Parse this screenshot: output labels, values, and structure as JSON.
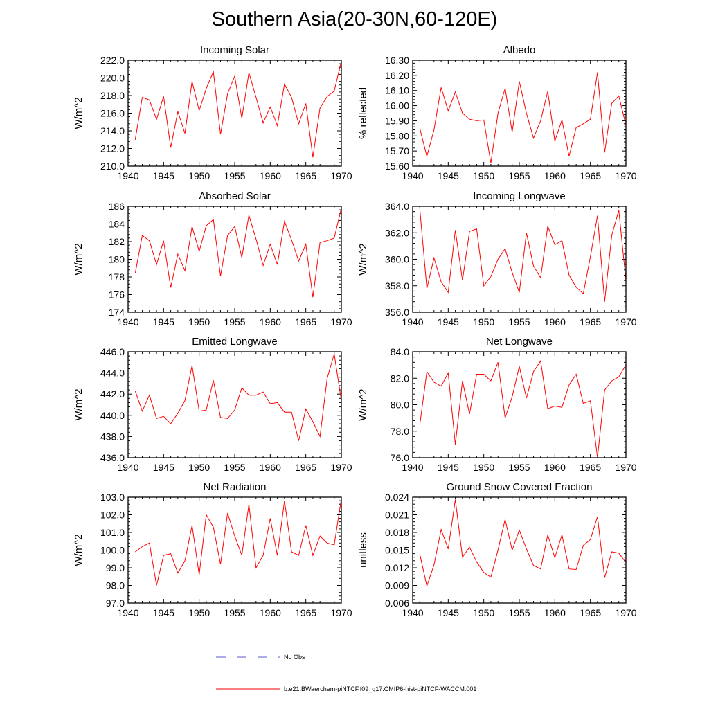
{
  "title": "Southern Asia(20-30N,60-120E)",
  "legend": {
    "entries": [
      {
        "label": "No Obs",
        "color": "#5a5acc",
        "style": "dashed"
      },
      {
        "label": "b.e21.BWaerchem-piNTCF.f09_g17.CMIP6-hist-piNTCF-WACCM.001",
        "color": "#ff0000",
        "style": "solid"
      }
    ]
  },
  "chart_data": [
    {
      "type": "line",
      "title": "Incoming Solar",
      "xlabel": "",
      "ylabel": "W/m^2",
      "xlim": [
        1940,
        1970
      ],
      "ylim": [
        210.0,
        222.0
      ],
      "xticks": [
        1940,
        1945,
        1950,
        1955,
        1960,
        1965,
        1970
      ],
      "xtick_labels": [
        "1940",
        "1945",
        "1950",
        "1955",
        "1960",
        "1965",
        "1970"
      ],
      "yticks": [
        210,
        212,
        214,
        216,
        218,
        220,
        222
      ],
      "ytick_labels": [
        "210.0",
        "212.0",
        "214.0",
        "216.0",
        "218.0",
        "220.0",
        "222.0"
      ],
      "series": [
        {
          "color": "#ff0000",
          "x": [
            1941,
            1942,
            1943,
            1944,
            1945,
            1946,
            1947,
            1948,
            1949,
            1950,
            1951,
            1952,
            1953,
            1954,
            1955,
            1956,
            1957,
            1958,
            1959,
            1960,
            1961,
            1962,
            1963,
            1964,
            1965,
            1966,
            1967,
            1968,
            1969,
            1970
          ],
          "values": [
            213.0,
            217.8,
            217.5,
            215.3,
            217.9,
            212.1,
            216.2,
            213.7,
            219.6,
            216.3,
            218.8,
            220.7,
            213.6,
            218.2,
            220.2,
            215.4,
            220.6,
            217.8,
            214.9,
            216.7,
            214.6,
            219.3,
            217.8,
            214.8,
            217.1,
            211.0,
            216.6,
            217.9,
            218.5,
            221.9
          ]
        }
      ]
    },
    {
      "type": "line",
      "title": "Albedo",
      "xlabel": "",
      "ylabel": "% reflected",
      "xlim": [
        1940,
        1970
      ],
      "ylim": [
        15.6,
        16.3
      ],
      "xticks": [
        1940,
        1945,
        1950,
        1955,
        1960,
        1965,
        1970
      ],
      "xtick_labels": [
        "1940",
        "1945",
        "1950",
        "1955",
        "1960",
        "1965",
        "1970"
      ],
      "yticks": [
        15.6,
        15.7,
        15.8,
        15.9,
        16.0,
        16.1,
        16.2,
        16.3
      ],
      "ytick_labels": [
        "15.60",
        "15.70",
        "15.80",
        "15.90",
        "16.00",
        "16.10",
        "16.20",
        "16.30"
      ],
      "series": [
        {
          "color": "#ff0000",
          "x": [
            1941,
            1942,
            1943,
            1944,
            1945,
            1946,
            1947,
            1948,
            1949,
            1950,
            1951,
            1952,
            1953,
            1954,
            1955,
            1956,
            1957,
            1958,
            1959,
            1960,
            1961,
            1962,
            1963,
            1964,
            1965,
            1966,
            1967,
            1968,
            1969,
            1970
          ],
          "values": [
            15.85,
            15.665,
            15.84,
            16.12,
            15.965,
            16.09,
            15.95,
            15.91,
            15.9,
            15.905,
            15.62,
            15.95,
            16.115,
            15.825,
            16.16,
            15.95,
            15.785,
            15.9,
            16.095,
            15.765,
            15.905,
            15.665,
            15.855,
            15.88,
            15.91,
            16.22,
            15.69,
            16.015,
            16.065,
            15.87
          ]
        }
      ]
    },
    {
      "type": "line",
      "title": "Absorbed Solar",
      "xlabel": "",
      "ylabel": "W/m^2",
      "xlim": [
        1940,
        1970
      ],
      "ylim": [
        174,
        186
      ],
      "xticks": [
        1940,
        1945,
        1950,
        1955,
        1960,
        1965,
        1970
      ],
      "xtick_labels": [
        "1940",
        "1945",
        "1950",
        "1955",
        "1960",
        "1965",
        "1970"
      ],
      "yticks": [
        174,
        176,
        178,
        180,
        182,
        184,
        186
      ],
      "ytick_labels": [
        "174",
        "176",
        "178",
        "180",
        "182",
        "184",
        "186"
      ],
      "series": [
        {
          "color": "#ff0000",
          "x": [
            1941,
            1942,
            1943,
            1944,
            1945,
            1946,
            1947,
            1948,
            1949,
            1950,
            1951,
            1952,
            1953,
            1954,
            1955,
            1956,
            1957,
            1958,
            1959,
            1960,
            1961,
            1962,
            1963,
            1964,
            1965,
            1966,
            1967,
            1968,
            1969,
            1970
          ],
          "values": [
            178.4,
            182.7,
            182.1,
            179.4,
            182.1,
            176.8,
            180.6,
            178.7,
            183.7,
            180.9,
            183.8,
            184.5,
            178.1,
            182.7,
            183.7,
            180.2,
            185.0,
            182.3,
            179.3,
            181.7,
            179.4,
            184.3,
            182.2,
            179.8,
            181.7,
            175.7,
            181.9,
            182.1,
            182.4,
            185.8
          ]
        }
      ]
    },
    {
      "type": "line",
      "title": "Incoming Longwave",
      "xlabel": "",
      "ylabel": "W/m^2",
      "xlim": [
        1940,
        1970
      ],
      "ylim": [
        356.0,
        364.0
      ],
      "xticks": [
        1940,
        1945,
        1950,
        1955,
        1960,
        1965,
        1970
      ],
      "xtick_labels": [
        "1940",
        "1945",
        "1950",
        "1955",
        "1960",
        "1965",
        "1970"
      ],
      "yticks": [
        356,
        358,
        360,
        362,
        364
      ],
      "ytick_labels": [
        "356.0",
        "358.0",
        "360.0",
        "362.0",
        "364.0"
      ],
      "series": [
        {
          "color": "#ff0000",
          "x": [
            1941,
            1942,
            1943,
            1944,
            1945,
            1946,
            1947,
            1948,
            1949,
            1950,
            1951,
            1952,
            1953,
            1954,
            1955,
            1956,
            1957,
            1958,
            1959,
            1960,
            1961,
            1962,
            1963,
            1964,
            1965,
            1966,
            1967,
            1968,
            1969,
            1970
          ],
          "values": [
            363.8,
            357.8,
            360.1,
            358.3,
            357.5,
            362.2,
            358.4,
            362.1,
            362.3,
            358.0,
            358.7,
            360.0,
            360.8,
            359.0,
            357.5,
            362.0,
            359.5,
            358.6,
            362.5,
            361.1,
            361.4,
            358.8,
            357.9,
            357.4,
            360.2,
            363.3,
            356.8,
            361.8,
            363.7,
            358.4
          ]
        }
      ]
    },
    {
      "type": "line",
      "title": "Emitted Longwave",
      "xlabel": "",
      "ylabel": "W/m^2",
      "xlim": [
        1940,
        1970
      ],
      "ylim": [
        436.0,
        446.0
      ],
      "xticks": [
        1940,
        1945,
        1950,
        1955,
        1960,
        1965,
        1970
      ],
      "xtick_labels": [
        "1940",
        "1945",
        "1950",
        "1955",
        "1960",
        "1965",
        "1970"
      ],
      "yticks": [
        436,
        438,
        440,
        442,
        444,
        446
      ],
      "ytick_labels": [
        "436.0",
        "438.0",
        "440.0",
        "442.0",
        "444.0",
        "446.0"
      ],
      "series": [
        {
          "color": "#ff0000",
          "x": [
            1941,
            1942,
            1943,
            1944,
            1945,
            1946,
            1947,
            1948,
            1949,
            1950,
            1951,
            1952,
            1953,
            1954,
            1955,
            1956,
            1957,
            1958,
            1959,
            1960,
            1961,
            1962,
            1963,
            1964,
            1965,
            1966,
            1967,
            1968,
            1969,
            1970
          ],
          "values": [
            442.3,
            440.4,
            441.9,
            439.7,
            439.9,
            439.2,
            440.2,
            441.4,
            444.7,
            440.4,
            440.5,
            443.3,
            439.8,
            439.7,
            440.5,
            442.6,
            441.9,
            441.9,
            442.2,
            441.1,
            441.2,
            440.3,
            440.3,
            437.6,
            440.6,
            439.4,
            438.0,
            443.5,
            445.8,
            441.4
          ]
        }
      ]
    },
    {
      "type": "line",
      "title": "Net Longwave",
      "xlabel": "",
      "ylabel": "W/m^2",
      "xlim": [
        1940,
        1970
      ],
      "ylim": [
        76.0,
        84.0
      ],
      "xticks": [
        1940,
        1945,
        1950,
        1955,
        1960,
        1965,
        1970
      ],
      "xtick_labels": [
        "1940",
        "1945",
        "1950",
        "1955",
        "1960",
        "1965",
        "1970"
      ],
      "yticks": [
        76,
        78,
        80,
        82,
        84
      ],
      "ytick_labels": [
        "76.0",
        "78.0",
        "80.0",
        "82.0",
        "84.0"
      ],
      "series": [
        {
          "color": "#ff0000",
          "x": [
            1941,
            1942,
            1943,
            1944,
            1945,
            1946,
            1947,
            1948,
            1949,
            1950,
            1951,
            1952,
            1953,
            1954,
            1955,
            1956,
            1957,
            1958,
            1959,
            1960,
            1961,
            1962,
            1963,
            1964,
            1965,
            1966,
            1967,
            1968,
            1969,
            1970
          ],
          "values": [
            78.5,
            82.5,
            81.7,
            81.4,
            82.4,
            77.0,
            81.8,
            79.3,
            82.3,
            82.3,
            81.8,
            83.2,
            79.0,
            80.6,
            82.9,
            80.5,
            82.5,
            83.3,
            79.7,
            79.9,
            79.8,
            81.5,
            82.3,
            80.1,
            80.3,
            76.0,
            81.1,
            81.8,
            82.1,
            83.0
          ]
        }
      ]
    },
    {
      "type": "line",
      "title": "Net Radiation",
      "xlabel": "",
      "ylabel": "W/m^2",
      "xlim": [
        1940,
        1970
      ],
      "ylim": [
        97.0,
        103.0
      ],
      "xticks": [
        1940,
        1945,
        1950,
        1955,
        1960,
        1965,
        1970
      ],
      "xtick_labels": [
        "1940",
        "1945",
        "1950",
        "1955",
        "1960",
        "1965",
        "1970"
      ],
      "yticks": [
        97,
        98,
        99,
        100,
        101,
        102,
        103
      ],
      "ytick_labels": [
        "97.0",
        "98.0",
        "99.0",
        "100.0",
        "101.0",
        "102.0",
        "103.0"
      ],
      "series": [
        {
          "color": "#ff0000",
          "x": [
            1941,
            1942,
            1943,
            1944,
            1945,
            1946,
            1947,
            1948,
            1949,
            1950,
            1951,
            1952,
            1953,
            1954,
            1955,
            1956,
            1957,
            1958,
            1959,
            1960,
            1961,
            1962,
            1963,
            1964,
            1965,
            1966,
            1967,
            1968,
            1969,
            1970
          ],
          "values": [
            99.9,
            100.2,
            100.4,
            98.0,
            99.7,
            99.8,
            98.7,
            99.4,
            101.4,
            98.6,
            102.0,
            101.3,
            99.2,
            102.1,
            100.8,
            99.7,
            102.6,
            99.0,
            99.7,
            101.8,
            99.7,
            102.8,
            99.9,
            99.7,
            101.4,
            99.7,
            100.8,
            100.4,
            100.3,
            102.9
          ]
        }
      ]
    },
    {
      "type": "line",
      "title": "Ground Snow Covered Fraction",
      "xlabel": "",
      "ylabel": "unitless",
      "xlim": [
        1940,
        1970
      ],
      "ylim": [
        0.006,
        0.024
      ],
      "xticks": [
        1940,
        1945,
        1950,
        1955,
        1960,
        1965,
        1970
      ],
      "xtick_labels": [
        "1940",
        "1945",
        "1950",
        "1955",
        "1960",
        "1965",
        "1970"
      ],
      "yticks": [
        0.006,
        0.009,
        0.012,
        0.015,
        0.018,
        0.021,
        0.024
      ],
      "ytick_labels": [
        "0.006",
        "0.009",
        "0.012",
        "0.015",
        "0.018",
        "0.021",
        "0.024"
      ],
      "series": [
        {
          "color": "#ff0000",
          "x": [
            1941,
            1942,
            1943,
            1944,
            1945,
            1946,
            1947,
            1948,
            1949,
            1950,
            1951,
            1952,
            1953,
            1954,
            1955,
            1956,
            1957,
            1958,
            1959,
            1960,
            1961,
            1962,
            1963,
            1964,
            1965,
            1966,
            1967,
            1968,
            1969,
            1970
          ],
          "values": [
            0.0143,
            0.0089,
            0.0125,
            0.0185,
            0.0152,
            0.0236,
            0.0138,
            0.0155,
            0.013,
            0.0112,
            0.0104,
            0.015,
            0.0202,
            0.015,
            0.0184,
            0.0152,
            0.0124,
            0.0118,
            0.0176,
            0.0137,
            0.0176,
            0.0118,
            0.0117,
            0.0158,
            0.0168,
            0.0207,
            0.0103,
            0.0147,
            0.0145,
            0.0129
          ]
        }
      ]
    }
  ]
}
